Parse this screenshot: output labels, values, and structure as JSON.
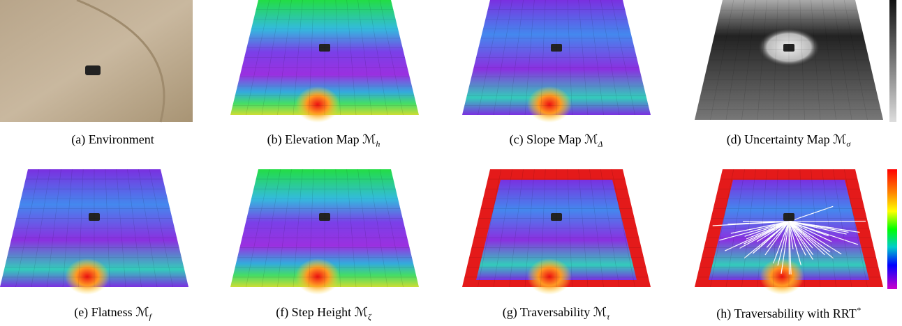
{
  "figure": {
    "panels": [
      {
        "caption": {
          "text": "(a) Environment"
        }
      },
      {
        "caption": {
          "text": "(b) Elevation Map",
          "math": "ℳ",
          "sub": "h"
        }
      },
      {
        "caption": {
          "text": "(c) Slope Map",
          "math": "ℳ",
          "sub": "Δ"
        }
      },
      {
        "caption": {
          "text": "(d) Uncertainty Map",
          "math": "ℳ",
          "sub": "σ"
        }
      },
      {
        "caption": {
          "text": "(e) Flatness",
          "math": "ℳ",
          "sub": "f"
        }
      },
      {
        "caption": {
          "text": "(f) Step Height",
          "math": "ℳ",
          "sub": "ζ"
        }
      },
      {
        "caption": {
          "text": "(g) Traversability",
          "math": "ℳ",
          "sub": "τ"
        }
      },
      {
        "caption": {
          "text": "(h) Traversability with RRT",
          "sup": "*"
        }
      }
    ]
  }
}
